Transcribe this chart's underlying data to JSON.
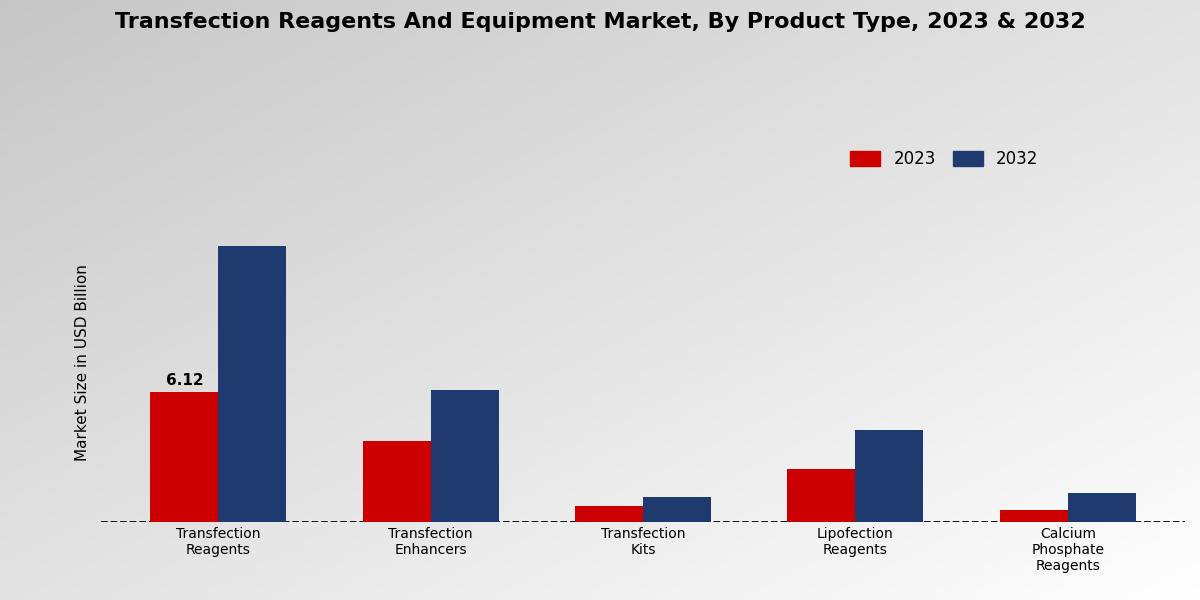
{
  "title": "Transfection Reagents And Equipment Market, By Product Type, 2023 & 2032",
  "ylabel": "Market Size in USD Billion",
  "categories": [
    "Transfection\nReagents",
    "Transfection\nEnhancers",
    "Transfection\nKits",
    "Lipofection\nReagents",
    "Calcium\nPhosphate\nReagents"
  ],
  "values_2023": [
    6.12,
    3.8,
    0.75,
    2.5,
    0.55
  ],
  "values_2032": [
    13.0,
    6.2,
    1.15,
    4.3,
    1.35
  ],
  "color_2023": "#cc0000",
  "color_2032": "#1e3a6e",
  "bar_width": 0.32,
  "annotation_label": "6.12",
  "annotation_bar": 0,
  "legend_labels": [
    "2023",
    "2032"
  ],
  "ylim": [
    0,
    15
  ],
  "title_fontsize": 16,
  "label_fontsize": 11,
  "tick_fontsize": 10,
  "legend_fontsize": 12
}
